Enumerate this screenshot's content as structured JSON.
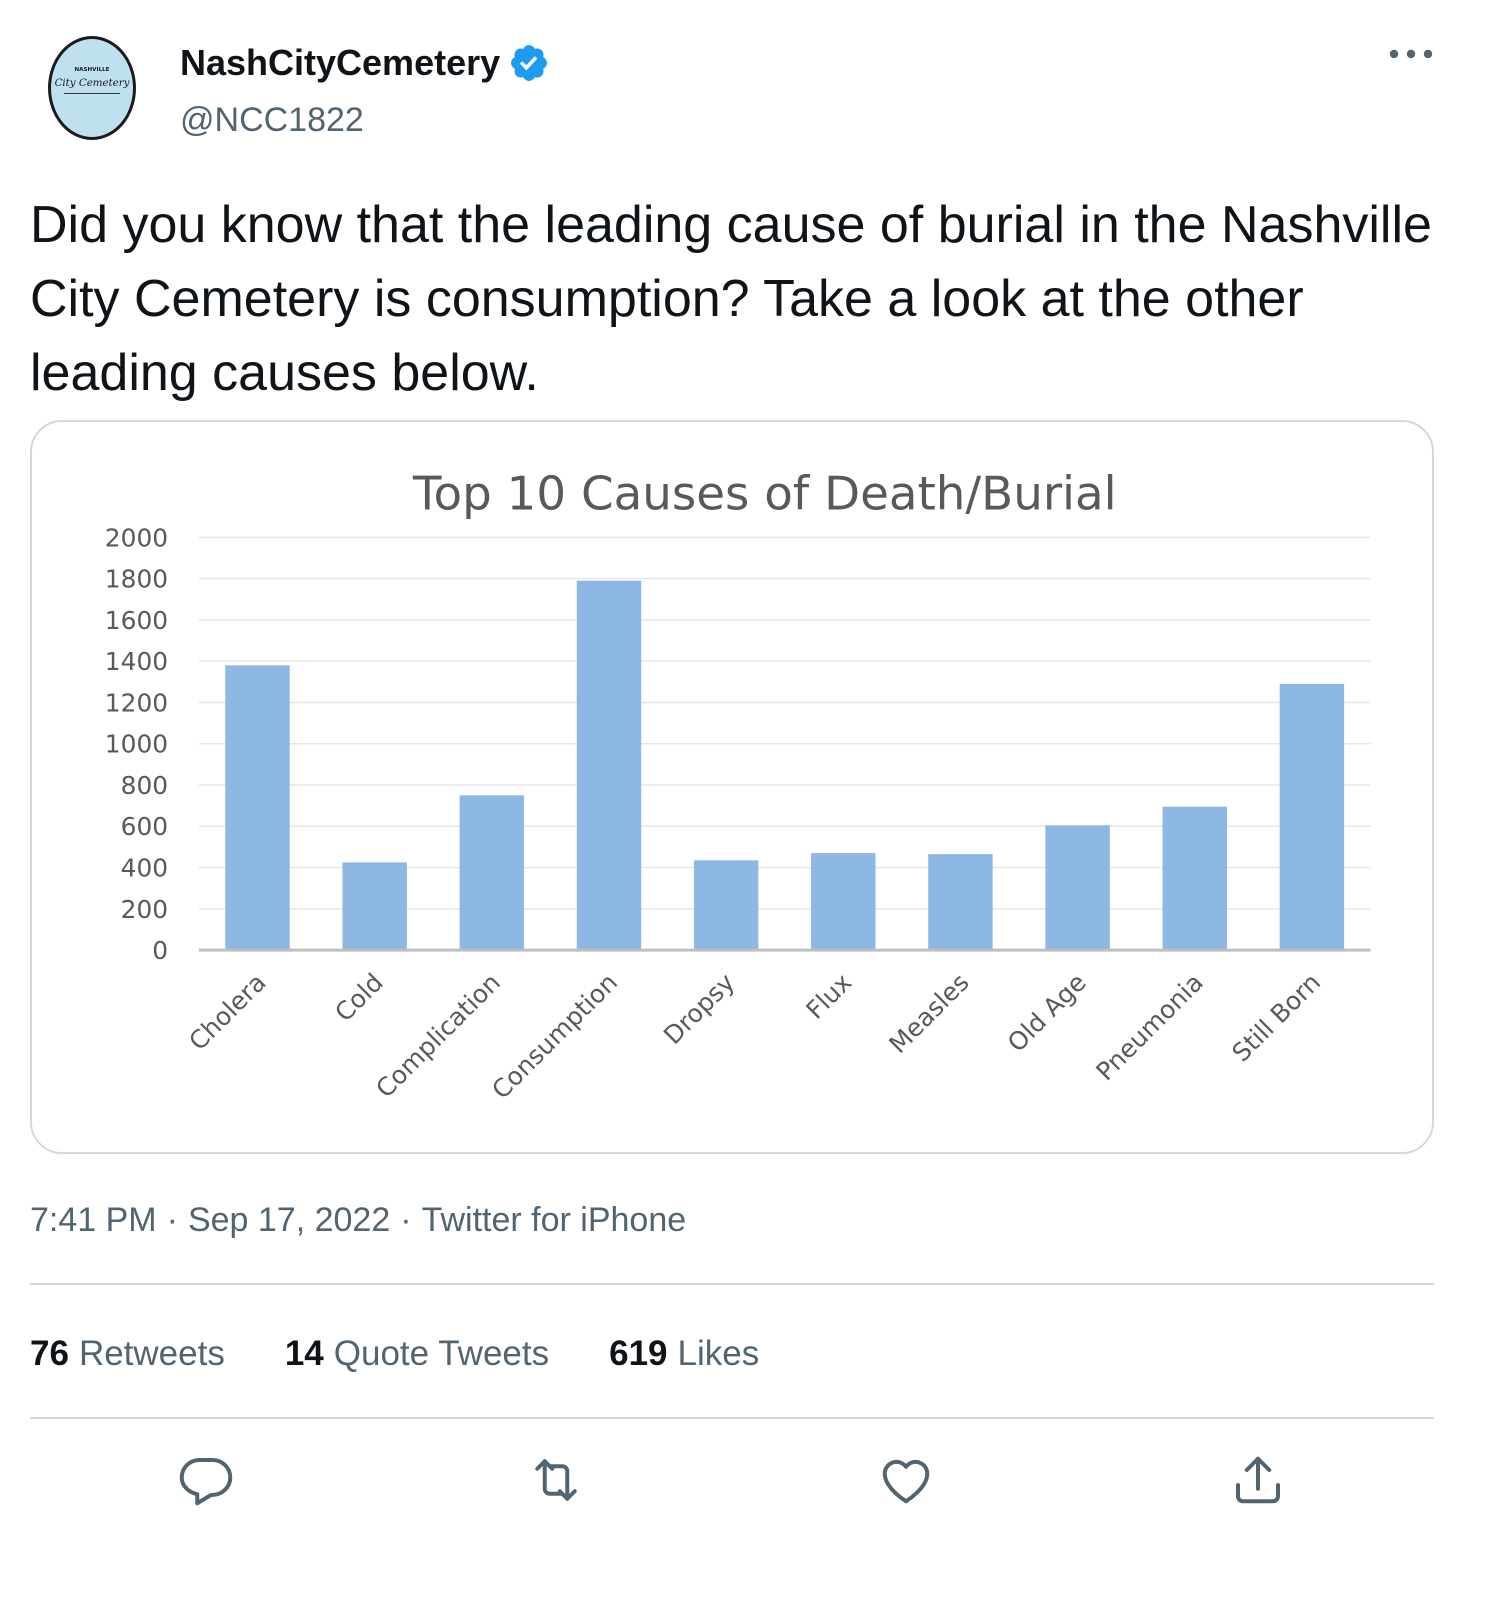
{
  "tweet": {
    "author": {
      "display_name": "NashCityCemetery",
      "handle": "@NCC1822",
      "verified": true,
      "avatar_text_top": "NASHVILLE",
      "avatar_text_main": "City Cemetery"
    },
    "text": "Did you know that the leading cause of burial in the Nashville City Cemetery is consumption? Take a look at the other leading causes below.",
    "time": "7:41 PM",
    "date": "Sep 17, 2022",
    "source": "Twitter for iPhone",
    "separator": "·",
    "stats": [
      {
        "count": "76",
        "label": "Retweets"
      },
      {
        "count": "14",
        "label": "Quote Tweets"
      },
      {
        "count": "619",
        "label": "Likes"
      }
    ],
    "actions": [
      "reply-icon",
      "retweet-icon",
      "like-icon",
      "share-icon"
    ],
    "colors": {
      "verified": "#1d9bf0",
      "secondary_text": "#536471",
      "bar": "#8db8e3",
      "divider": "#cfd9de"
    }
  },
  "chart_data": {
    "type": "bar",
    "title": "Top 10 Causes of Death/Burial",
    "categories": [
      "Cholera",
      "Cold",
      "Complication",
      "Consumption",
      "Dropsy",
      "Flux",
      "Measles",
      "Old Age",
      "Pneumonia",
      "Still Born"
    ],
    "values": [
      1380,
      425,
      750,
      1790,
      435,
      470,
      465,
      605,
      695,
      1290
    ],
    "yticks": [
      "2000",
      "1800",
      "1600",
      "1400",
      "1200",
      "1000",
      "800",
      "600",
      "400",
      "200",
      "0"
    ],
    "ylim": [
      0,
      2000
    ],
    "xlabel": "",
    "ylabel": "",
    "grid": true,
    "legend": "none"
  }
}
